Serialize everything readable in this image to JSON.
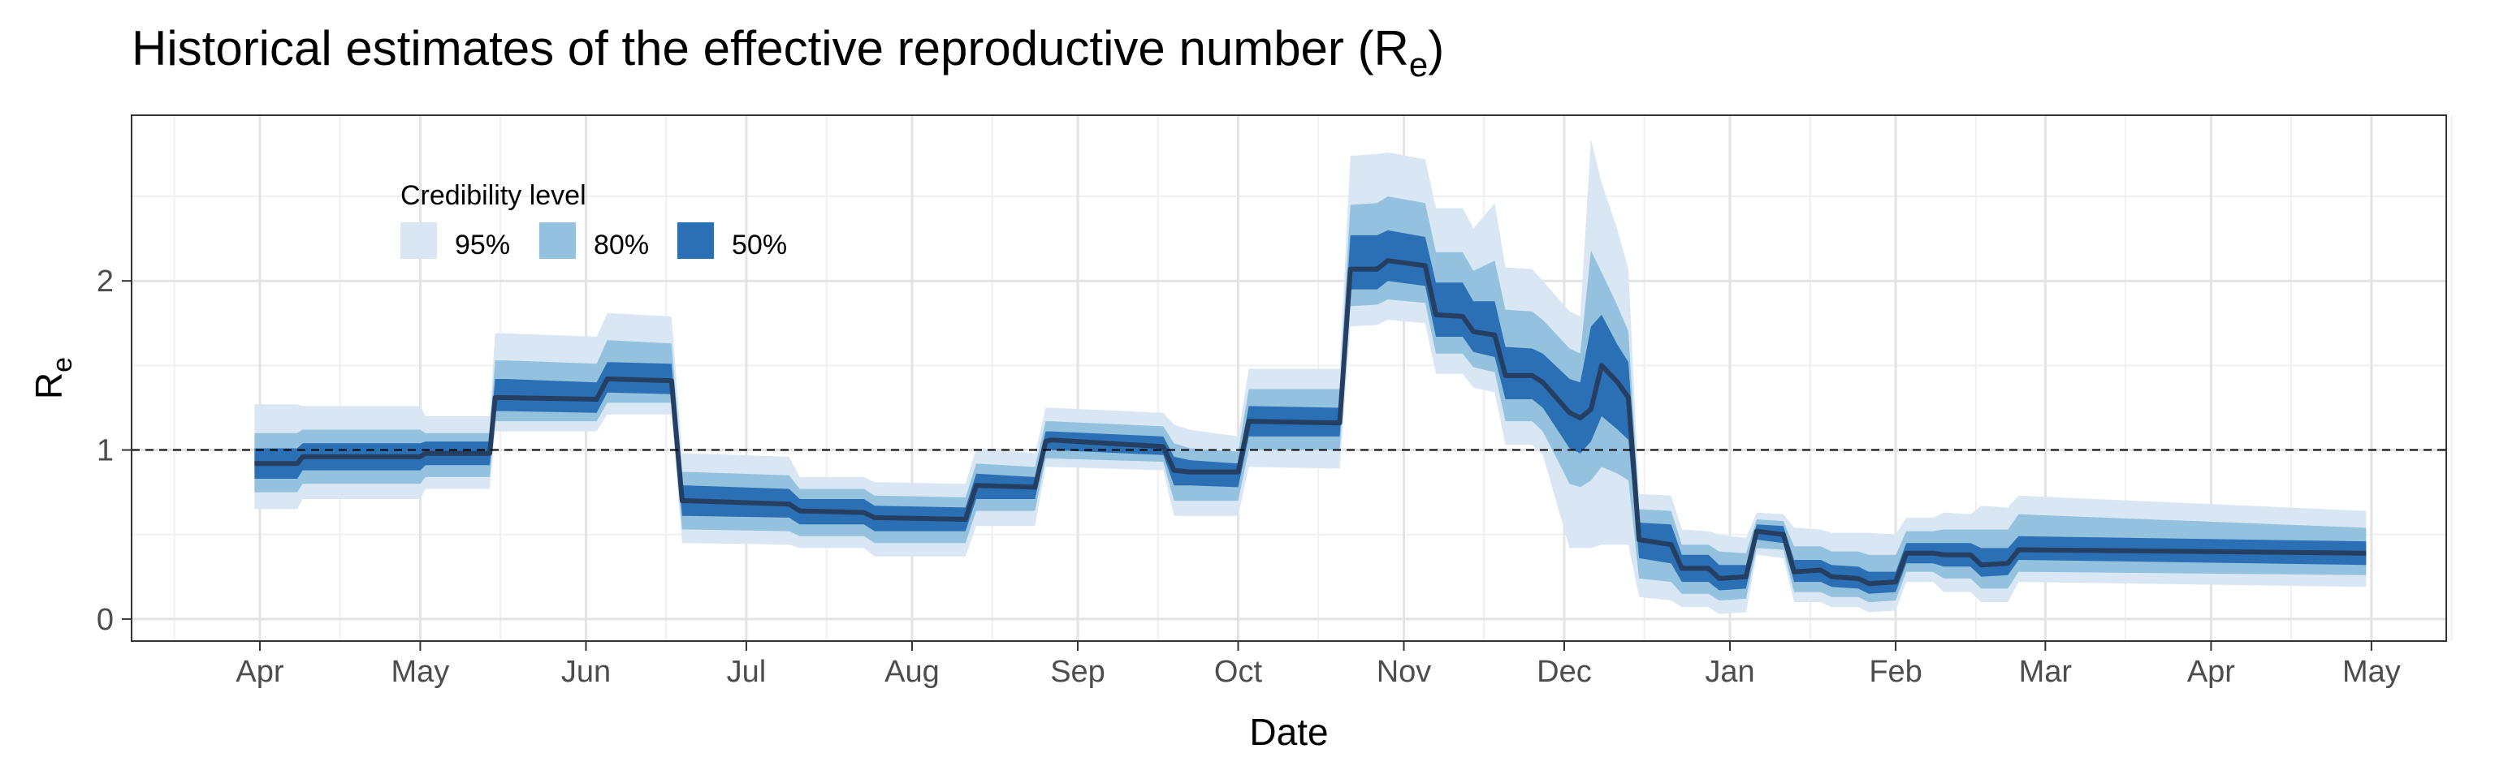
{
  "chart_data": {
    "type": "area",
    "title": "Historical estimates of the effective reproductive number (R",
    "title_subscript": "e",
    "title_suffix": ")",
    "xlabel": "Date",
    "ylabel": "R",
    "ylabel_subscript": "e",
    "x_tick_labels": [
      "Apr",
      "May",
      "Jun",
      "Jul",
      "Aug",
      "Sep",
      "Oct",
      "Nov",
      "Dec",
      "Jan",
      "Feb",
      "Mar",
      "Apr",
      "May"
    ],
    "x_ticks": [
      "2020-04-01",
      "2020-05-01",
      "2020-06-01",
      "2020-07-01",
      "2020-08-01",
      "2020-09-01",
      "2020-10-01",
      "2020-11-01",
      "2020-12-01",
      "2021-01-01",
      "2021-02-01",
      "2021-03-01",
      "2021-04-01",
      "2021-05-01"
    ],
    "x_minor_ticks": [
      "2020-03-16",
      "2020-04-16",
      "2020-05-16",
      "2020-06-16",
      "2020-07-16",
      "2020-08-16",
      "2020-09-16",
      "2020-10-16",
      "2020-11-16",
      "2020-12-16",
      "2021-01-16",
      "2021-02-16",
      "2021-03-16",
      "2021-04-16",
      "2021-05-16"
    ],
    "xlim": [
      "2020-03-08",
      "2021-05-15"
    ],
    "y_ticks": [
      0,
      1,
      2
    ],
    "y_tick_labels": [
      "0",
      "1",
      "2"
    ],
    "ylim": [
      -0.13,
      2.98
    ],
    "reference_line": {
      "y": 1,
      "style": "dashed",
      "color": "#000000"
    },
    "grid": true,
    "legend": {
      "title": "Credibility level",
      "placement": "top-left",
      "entries": [
        "95%",
        "80%",
        "50%"
      ],
      "colors": [
        "#d9e7f5",
        "#94c2de",
        "#2b6fb5"
      ]
    },
    "median_color": "#253f63",
    "x": [
      "2020-03-31",
      "2020-04-08",
      "2020-04-09",
      "2020-05-01",
      "2020-05-02",
      "2020-05-14",
      "2020-05-15",
      "2020-05-17",
      "2020-06-03",
      "2020-06-05",
      "2020-06-17",
      "2020-06-19",
      "2020-06-20",
      "2020-07-09",
      "2020-07-11",
      "2020-07-23",
      "2020-07-25",
      "2020-08-11",
      "2020-08-13",
      "2020-08-24",
      "2020-08-26",
      "2020-08-27",
      "2020-09-17",
      "2020-09-19",
      "2020-09-22",
      "2020-10-01",
      "2020-10-03",
      "2020-10-20",
      "2020-10-22",
      "2020-10-27",
      "2020-10-29",
      "2020-11-05",
      "2020-11-07",
      "2020-11-12",
      "2020-11-14",
      "2020-11-18",
      "2020-11-20",
      "2020-11-25",
      "2020-11-27",
      "2020-12-02",
      "2020-12-04",
      "2020-12-06",
      "2020-12-08",
      "2020-12-11",
      "2020-12-13",
      "2020-12-15",
      "2020-12-21",
      "2020-12-23",
      "2020-12-28",
      "2020-12-30",
      "2021-01-04",
      "2021-01-06",
      "2021-01-11",
      "2021-01-13",
      "2021-01-18",
      "2021-01-20",
      "2021-01-25",
      "2021-01-27",
      "2021-02-01",
      "2021-02-03",
      "2021-02-08",
      "2021-02-10",
      "2021-02-15",
      "2021-02-17",
      "2021-02-22",
      "2021-02-24",
      "2021-04-30"
    ],
    "median": [
      0.92,
      0.92,
      0.96,
      0.96,
      0.98,
      0.98,
      1.31,
      1.31,
      1.3,
      1.42,
      1.41,
      0.7,
      0.7,
      0.68,
      0.64,
      0.63,
      0.6,
      0.59,
      0.79,
      0.78,
      1.05,
      1.06,
      1.02,
      0.88,
      0.87,
      0.87,
      1.17,
      1.16,
      2.07,
      2.07,
      2.12,
      2.09,
      1.8,
      1.79,
      1.7,
      1.68,
      1.44,
      1.44,
      1.4,
      1.22,
      1.19,
      1.24,
      1.5,
      1.4,
      1.31,
      0.47,
      0.44,
      0.3,
      0.3,
      0.24,
      0.25,
      0.52,
      0.5,
      0.28,
      0.29,
      0.25,
      0.24,
      0.21,
      0.22,
      0.39,
      0.39,
      0.38,
      0.38,
      0.32,
      0.33,
      0.41,
      0.39
    ],
    "series": [
      {
        "name": "95%",
        "lower": [
          0.65,
          0.65,
          0.71,
          0.71,
          0.77,
          0.77,
          1.11,
          1.11,
          1.11,
          1.21,
          1.21,
          0.45,
          0.45,
          0.44,
          0.42,
          0.42,
          0.37,
          0.37,
          0.55,
          0.55,
          0.9,
          0.9,
          0.88,
          0.61,
          0.61,
          0.61,
          0.9,
          0.89,
          1.73,
          1.74,
          1.77,
          1.75,
          1.45,
          1.45,
          1.37,
          1.34,
          1.03,
          1.03,
          0.97,
          0.42,
          0.42,
          0.42,
          0.44,
          0.44,
          0.44,
          0.13,
          0.11,
          0.07,
          0.07,
          0.03,
          0.04,
          0.38,
          0.36,
          0.1,
          0.1,
          0.07,
          0.07,
          0.04,
          0.05,
          0.22,
          0.22,
          0.16,
          0.16,
          0.1,
          0.1,
          0.22,
          0.19
        ],
        "upper": [
          1.27,
          1.27,
          1.26,
          1.26,
          1.2,
          1.2,
          1.69,
          1.69,
          1.67,
          1.81,
          1.79,
          0.98,
          0.98,
          0.96,
          0.84,
          0.84,
          0.81,
          0.8,
          1.01,
          0.98,
          1.25,
          1.25,
          1.22,
          1.15,
          1.12,
          1.08,
          1.48,
          1.48,
          2.74,
          2.75,
          2.76,
          2.72,
          2.43,
          2.43,
          2.31,
          2.46,
          2.08,
          2.07,
          2.0,
          1.82,
          1.79,
          2.84,
          2.58,
          2.3,
          2.07,
          0.74,
          0.73,
          0.53,
          0.52,
          0.5,
          0.48,
          0.63,
          0.62,
          0.54,
          0.53,
          0.51,
          0.51,
          0.51,
          0.5,
          0.6,
          0.6,
          0.63,
          0.62,
          0.67,
          0.66,
          0.73,
          0.64
        ]
      },
      {
        "name": "80%",
        "lower": [
          0.75,
          0.75,
          0.8,
          0.8,
          0.84,
          0.84,
          1.17,
          1.17,
          1.17,
          1.28,
          1.28,
          0.53,
          0.53,
          0.52,
          0.49,
          0.49,
          0.45,
          0.45,
          0.64,
          0.64,
          0.95,
          0.95,
          0.93,
          0.7,
          0.7,
          0.7,
          1.0,
          1.0,
          1.85,
          1.86,
          1.89,
          1.87,
          1.57,
          1.57,
          1.49,
          1.46,
          1.17,
          1.17,
          1.11,
          0.8,
          0.78,
          0.82,
          0.9,
          0.86,
          0.82,
          0.24,
          0.22,
          0.15,
          0.15,
          0.11,
          0.12,
          0.42,
          0.41,
          0.16,
          0.16,
          0.13,
          0.13,
          0.1,
          0.11,
          0.28,
          0.28,
          0.24,
          0.24,
          0.18,
          0.18,
          0.28,
          0.26
        ],
        "upper": [
          1.1,
          1.1,
          1.12,
          1.12,
          1.1,
          1.1,
          1.53,
          1.53,
          1.51,
          1.65,
          1.63,
          0.87,
          0.87,
          0.85,
          0.77,
          0.77,
          0.73,
          0.72,
          0.92,
          0.9,
          1.17,
          1.17,
          1.14,
          1.04,
          1.01,
          0.99,
          1.36,
          1.36,
          2.45,
          2.46,
          2.5,
          2.46,
          2.17,
          2.17,
          2.06,
          2.12,
          1.83,
          1.82,
          1.77,
          1.6,
          1.57,
          2.18,
          2.05,
          1.85,
          1.7,
          0.65,
          0.64,
          0.44,
          0.44,
          0.4,
          0.39,
          0.59,
          0.58,
          0.43,
          0.43,
          0.4,
          0.4,
          0.38,
          0.38,
          0.52,
          0.52,
          0.53,
          0.53,
          0.53,
          0.53,
          0.62,
          0.54
        ]
      },
      {
        "name": "50%",
        "lower": [
          0.83,
          0.83,
          0.88,
          0.88,
          0.91,
          0.91,
          1.23,
          1.23,
          1.22,
          1.34,
          1.33,
          0.61,
          0.61,
          0.6,
          0.56,
          0.56,
          0.52,
          0.52,
          0.71,
          0.71,
          1.0,
          1.0,
          0.97,
          0.79,
          0.79,
          0.78,
          1.08,
          1.08,
          1.95,
          1.95,
          2.0,
          1.97,
          1.67,
          1.67,
          1.58,
          1.55,
          1.3,
          1.3,
          1.25,
          1.01,
          0.98,
          1.05,
          1.2,
          1.12,
          1.06,
          0.36,
          0.33,
          0.22,
          0.22,
          0.17,
          0.18,
          0.47,
          0.45,
          0.22,
          0.22,
          0.19,
          0.18,
          0.15,
          0.16,
          0.33,
          0.33,
          0.31,
          0.31,
          0.25,
          0.26,
          0.35,
          0.32
        ],
        "upper": [
          1.01,
          1.01,
          1.04,
          1.04,
          1.05,
          1.05,
          1.42,
          1.42,
          1.4,
          1.52,
          1.51,
          0.79,
          0.79,
          0.77,
          0.71,
          0.71,
          0.67,
          0.66,
          0.86,
          0.84,
          1.11,
          1.11,
          1.08,
          0.96,
          0.94,
          0.92,
          1.26,
          1.25,
          2.27,
          2.27,
          2.3,
          2.26,
          1.99,
          1.99,
          1.88,
          1.88,
          1.61,
          1.6,
          1.57,
          1.42,
          1.4,
          1.73,
          1.8,
          1.62,
          1.52,
          0.57,
          0.56,
          0.38,
          0.38,
          0.32,
          0.32,
          0.56,
          0.55,
          0.35,
          0.35,
          0.32,
          0.31,
          0.28,
          0.28,
          0.45,
          0.45,
          0.45,
          0.45,
          0.42,
          0.42,
          0.49,
          0.46
        ]
      }
    ]
  }
}
